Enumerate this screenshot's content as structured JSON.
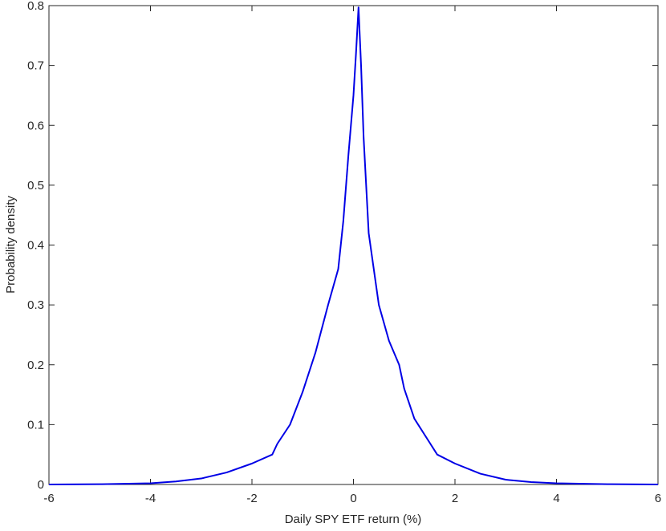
{
  "chart_data": {
    "type": "line",
    "xlabel": "Daily SPY ETF return (%)",
    "ylabel": "Probability density",
    "x": [
      -6,
      -5,
      -4,
      -3.5,
      -3,
      -2.5,
      -2,
      -1.6,
      -1.5,
      -1.25,
      -1,
      -0.75,
      -0.5,
      -0.3,
      -0.2,
      -0.1,
      0,
      0.05,
      0.1,
      0.15,
      0.2,
      0.25,
      0.3,
      0.4,
      0.5,
      0.7,
      0.9,
      1,
      1.2,
      1.5,
      1.65,
      2,
      2.5,
      3,
      3.5,
      4,
      5,
      6
    ],
    "series": [
      {
        "color": "#0000e6",
        "values": [
          0,
          0.0005,
          0.002,
          0.005,
          0.01,
          0.02,
          0.035,
          0.05,
          0.068,
          0.1,
          0.155,
          0.22,
          0.3,
          0.36,
          0.44,
          0.55,
          0.65,
          0.72,
          0.797,
          0.7,
          0.58,
          0.5,
          0.42,
          0.36,
          0.3,
          0.24,
          0.2,
          0.16,
          0.11,
          0.07,
          0.05,
          0.035,
          0.018,
          0.008,
          0.004,
          0.002,
          0.0005,
          0
        ]
      }
    ],
    "xlim": [
      -6,
      6
    ],
    "ylim": [
      0,
      0.8
    ],
    "xticks": [
      -6,
      -4,
      -2,
      0,
      2,
      4,
      6
    ],
    "yticks": [
      0,
      0.1,
      0.2,
      0.3,
      0.4,
      0.5,
      0.6,
      0.7,
      0.8
    ]
  }
}
